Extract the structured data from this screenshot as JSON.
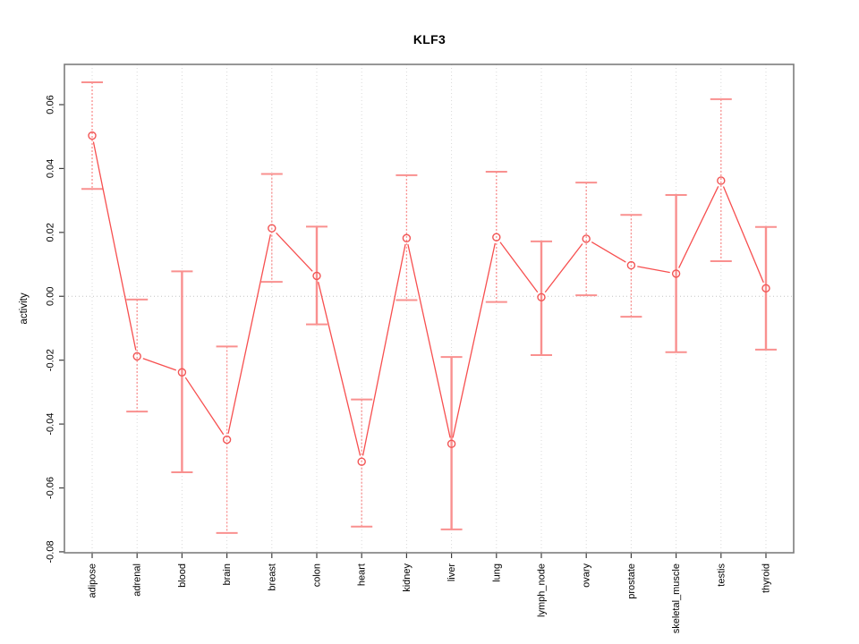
{
  "chart_data": {
    "type": "line",
    "error_bars": true,
    "title": "KLF3",
    "xlabel": "",
    "ylabel": "activity",
    "legend": "none",
    "categories": [
      "adipose",
      "adrenal",
      "blood",
      "brain",
      "breast",
      "colon",
      "heart",
      "kidney",
      "liver",
      "lung",
      "lymph_node",
      "ovary",
      "prostate",
      "skeletal_muscle",
      "testis",
      "thyroid"
    ],
    "values": [
      0.0503,
      -0.0188,
      -0.0238,
      -0.0449,
      0.0213,
      0.0064,
      -0.0518,
      0.0182,
      -0.0462,
      0.0185,
      -0.0003,
      0.018,
      0.0097,
      0.0071,
      0.0362,
      0.0025
    ],
    "ci_low": [
      0.0336,
      -0.0361,
      -0.0551,
      -0.0741,
      0.0045,
      -0.0088,
      -0.0721,
      -0.0012,
      -0.073,
      -0.0018,
      -0.0184,
      0.0003,
      -0.0064,
      -0.0175,
      0.011,
      -0.0167
    ],
    "ci_high": [
      0.067,
      -0.001,
      0.0078,
      -0.0157,
      0.0383,
      0.0218,
      -0.0323,
      0.0379,
      -0.019,
      0.039,
      0.0172,
      0.0356,
      0.0255,
      0.0317,
      0.0617,
      0.0217
    ],
    "bar_styles": [
      "dotted",
      "dotted",
      "solid",
      "dotted",
      "dotted",
      "solid",
      "dotted",
      "dotted",
      "solid",
      "dotted",
      "solid",
      "dotted",
      "dotted",
      "solid",
      "dotted",
      "solid"
    ],
    "ylim": [
      -0.0803,
      0.0726
    ],
    "yticks": [
      -0.08,
      -0.06,
      -0.04,
      -0.02,
      0.0,
      0.02,
      0.04,
      0.06
    ],
    "ytick_labels": [
      "-0.08",
      "-0.06",
      "-0.04",
      "-0.02",
      "0.00",
      "0.02",
      "0.04",
      "0.06"
    ],
    "grid": {
      "vertical_dotted_per_category": true,
      "horizontal_zero_line": true
    },
    "colors": {
      "line": "#f74f4f",
      "point": "#f25555",
      "error_bar": "#f9908f",
      "grid": "#d9d9d9",
      "zero_line": "#c4c4c4",
      "box": "#7d7d7d",
      "tick": "#3d3d3d",
      "text": "#000000",
      "background": "#ffffff"
    }
  }
}
